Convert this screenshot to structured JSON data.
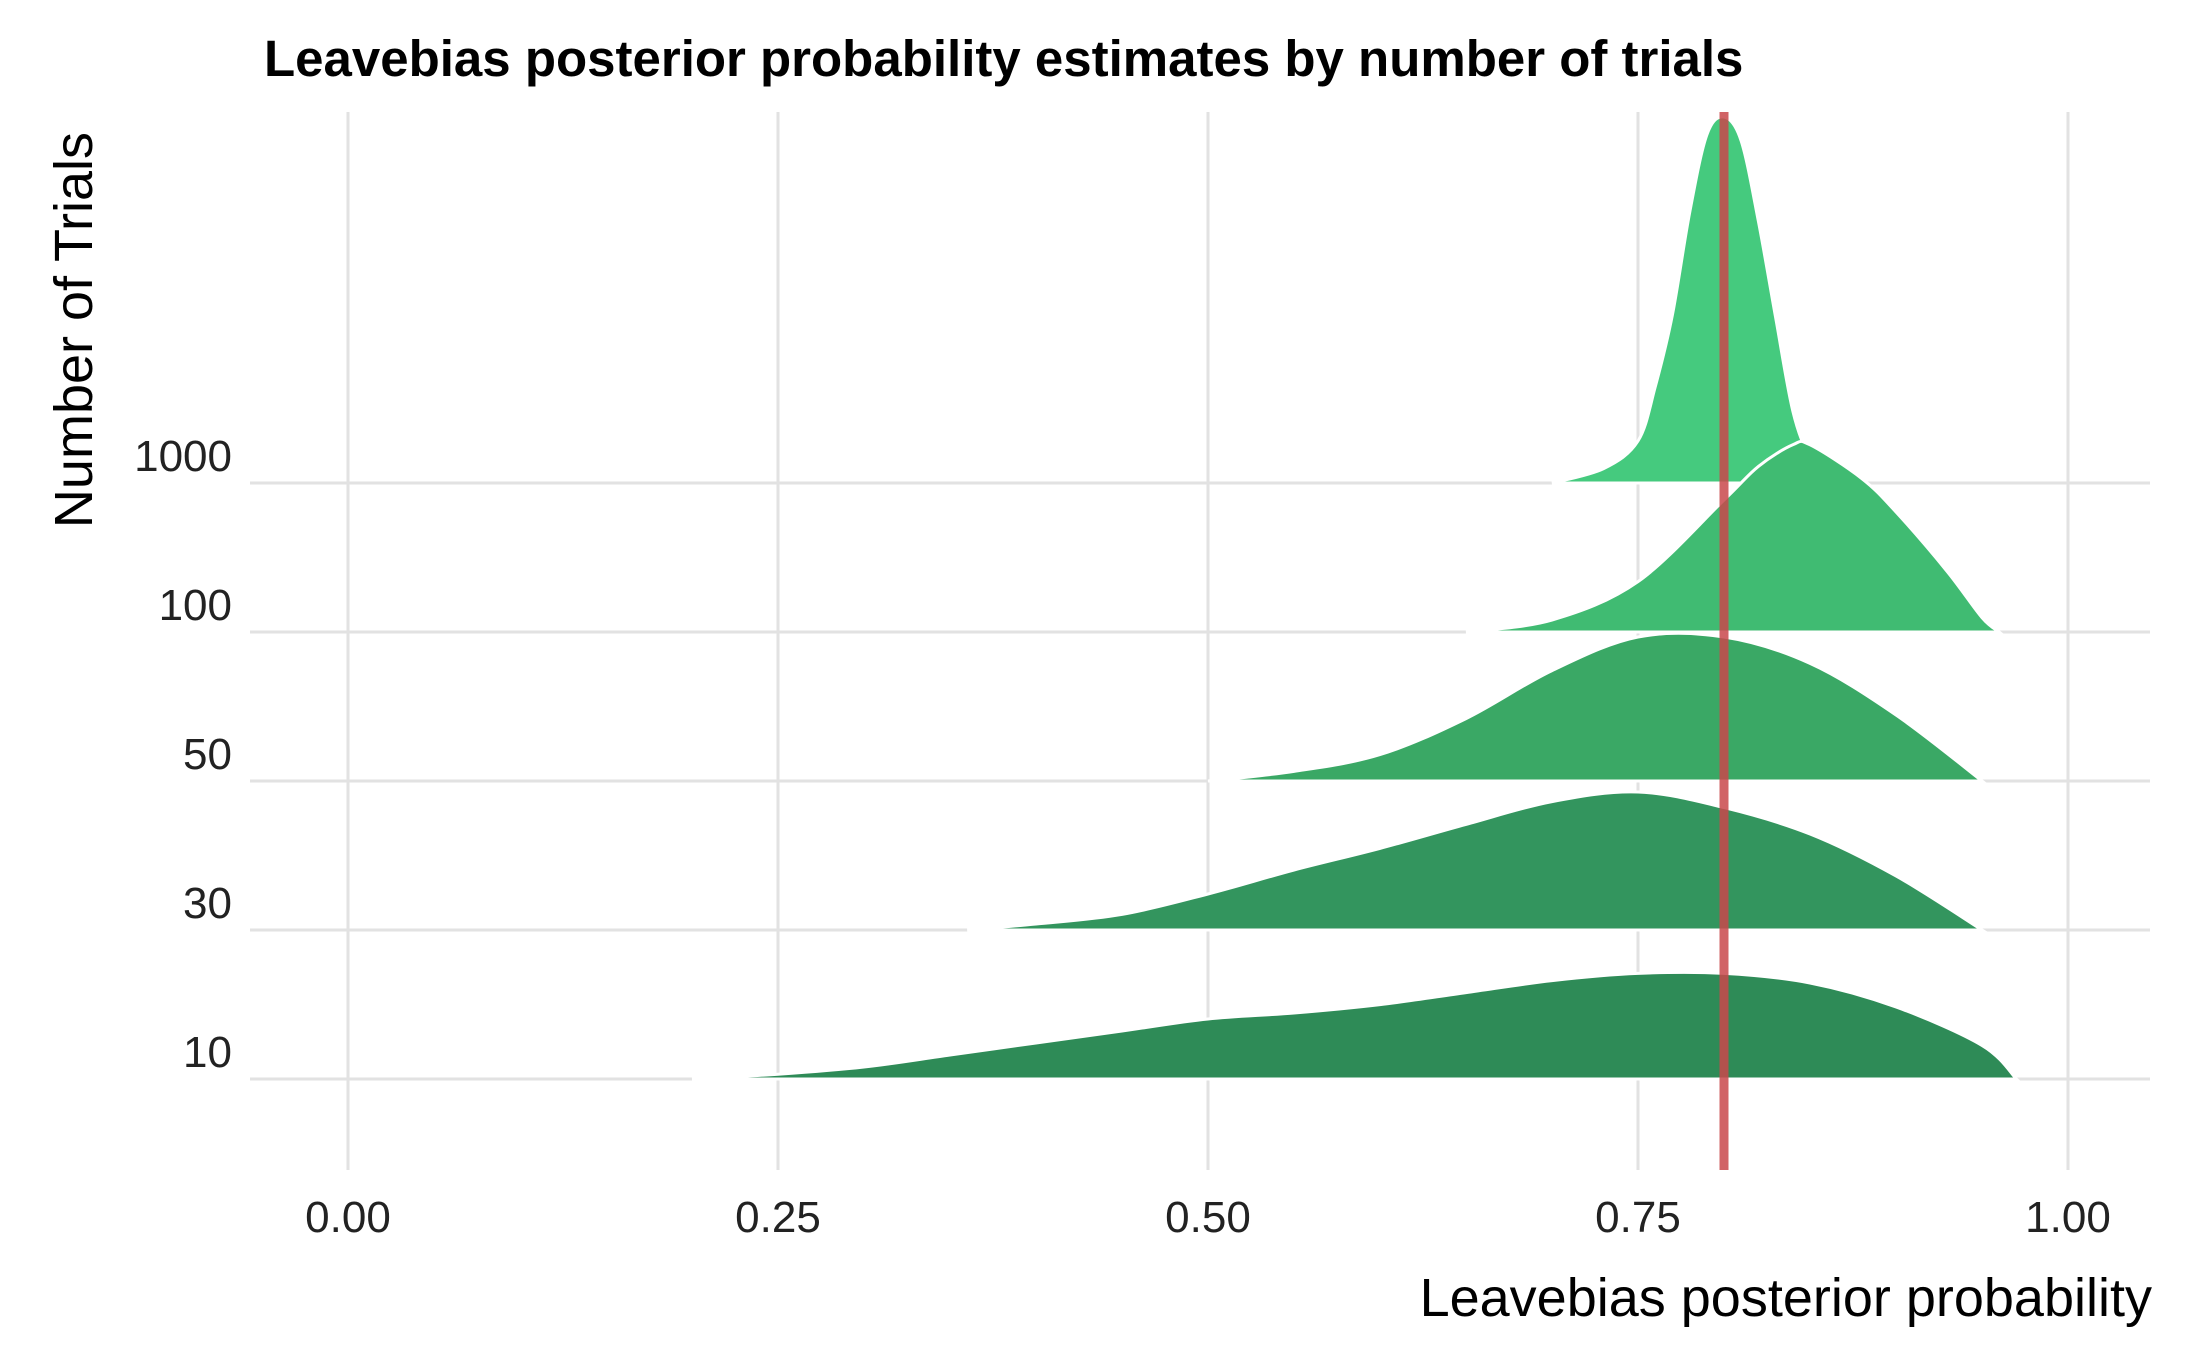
{
  "chart_data": {
    "type": "ridgeline",
    "title": "Leavebias posterior probability estimates by number of trials",
    "xlabel": "Leavebias posterior probability",
    "ylabel": "Number of Trials",
    "xlim": [
      0,
      1
    ],
    "x_ticks": [
      "0.00",
      "0.25",
      "0.50",
      "0.75",
      "1.00"
    ],
    "x_tick_values": [
      0,
      0.25,
      0.5,
      0.75,
      1.0
    ],
    "grid": true,
    "reference_line": {
      "x": 0.8,
      "color": "#c9484b"
    },
    "series": [
      {
        "name": "10",
        "color": "#2e8b57",
        "points": [
          [
            0.2,
            0.0
          ],
          [
            0.25,
            0.004
          ],
          [
            0.3,
            0.01
          ],
          [
            0.35,
            0.02
          ],
          [
            0.4,
            0.03
          ],
          [
            0.45,
            0.04
          ],
          [
            0.5,
            0.05
          ],
          [
            0.55,
            0.055
          ],
          [
            0.6,
            0.062
          ],
          [
            0.65,
            0.072
          ],
          [
            0.7,
            0.082
          ],
          [
            0.75,
            0.088
          ],
          [
            0.8,
            0.088
          ],
          [
            0.85,
            0.08
          ],
          [
            0.9,
            0.06
          ],
          [
            0.95,
            0.028
          ],
          [
            0.97,
            0.0
          ]
        ]
      },
      {
        "name": "30",
        "color": "#33955e",
        "points": [
          [
            0.36,
            0.0
          ],
          [
            0.4,
            0.005
          ],
          [
            0.45,
            0.013
          ],
          [
            0.5,
            0.03
          ],
          [
            0.55,
            0.05
          ],
          [
            0.6,
            0.068
          ],
          [
            0.65,
            0.088
          ],
          [
            0.7,
            0.107
          ],
          [
            0.75,
            0.115
          ],
          [
            0.8,
            0.102
          ],
          [
            0.85,
            0.08
          ],
          [
            0.9,
            0.045
          ],
          [
            0.95,
            0.0
          ]
        ]
      },
      {
        "name": "50",
        "color": "#3aa865",
        "points": [
          [
            0.5,
            0.0
          ],
          [
            0.55,
            0.008
          ],
          [
            0.6,
            0.022
          ],
          [
            0.65,
            0.052
          ],
          [
            0.7,
            0.092
          ],
          [
            0.75,
            0.12
          ],
          [
            0.8,
            0.12
          ],
          [
            0.85,
            0.098
          ],
          [
            0.9,
            0.055
          ],
          [
            0.95,
            0.0
          ]
        ]
      },
      {
        "name": "100",
        "color": "#40bb72",
        "points": [
          [
            0.65,
            0.0
          ],
          [
            0.7,
            0.01
          ],
          [
            0.75,
            0.042
          ],
          [
            0.8,
            0.11
          ],
          [
            0.82,
            0.138
          ],
          [
            0.84,
            0.156
          ],
          [
            0.85,
            0.156
          ],
          [
            0.88,
            0.128
          ],
          [
            0.9,
            0.1
          ],
          [
            0.93,
            0.05
          ],
          [
            0.95,
            0.012
          ],
          [
            0.96,
            0.0
          ]
        ]
      },
      {
        "name": "1000",
        "color": "#45ca7e",
        "points": [
          [
            0.7,
            0.0
          ],
          [
            0.73,
            0.012
          ],
          [
            0.75,
            0.035
          ],
          [
            0.76,
            0.08
          ],
          [
            0.77,
            0.14
          ],
          [
            0.78,
            0.225
          ],
          [
            0.79,
            0.29
          ],
          [
            0.8,
            0.305
          ],
          [
            0.81,
            0.285
          ],
          [
            0.82,
            0.218
          ],
          [
            0.83,
            0.138
          ],
          [
            0.84,
            0.06
          ],
          [
            0.85,
            0.02
          ],
          [
            0.86,
            0.0
          ]
        ]
      }
    ]
  }
}
